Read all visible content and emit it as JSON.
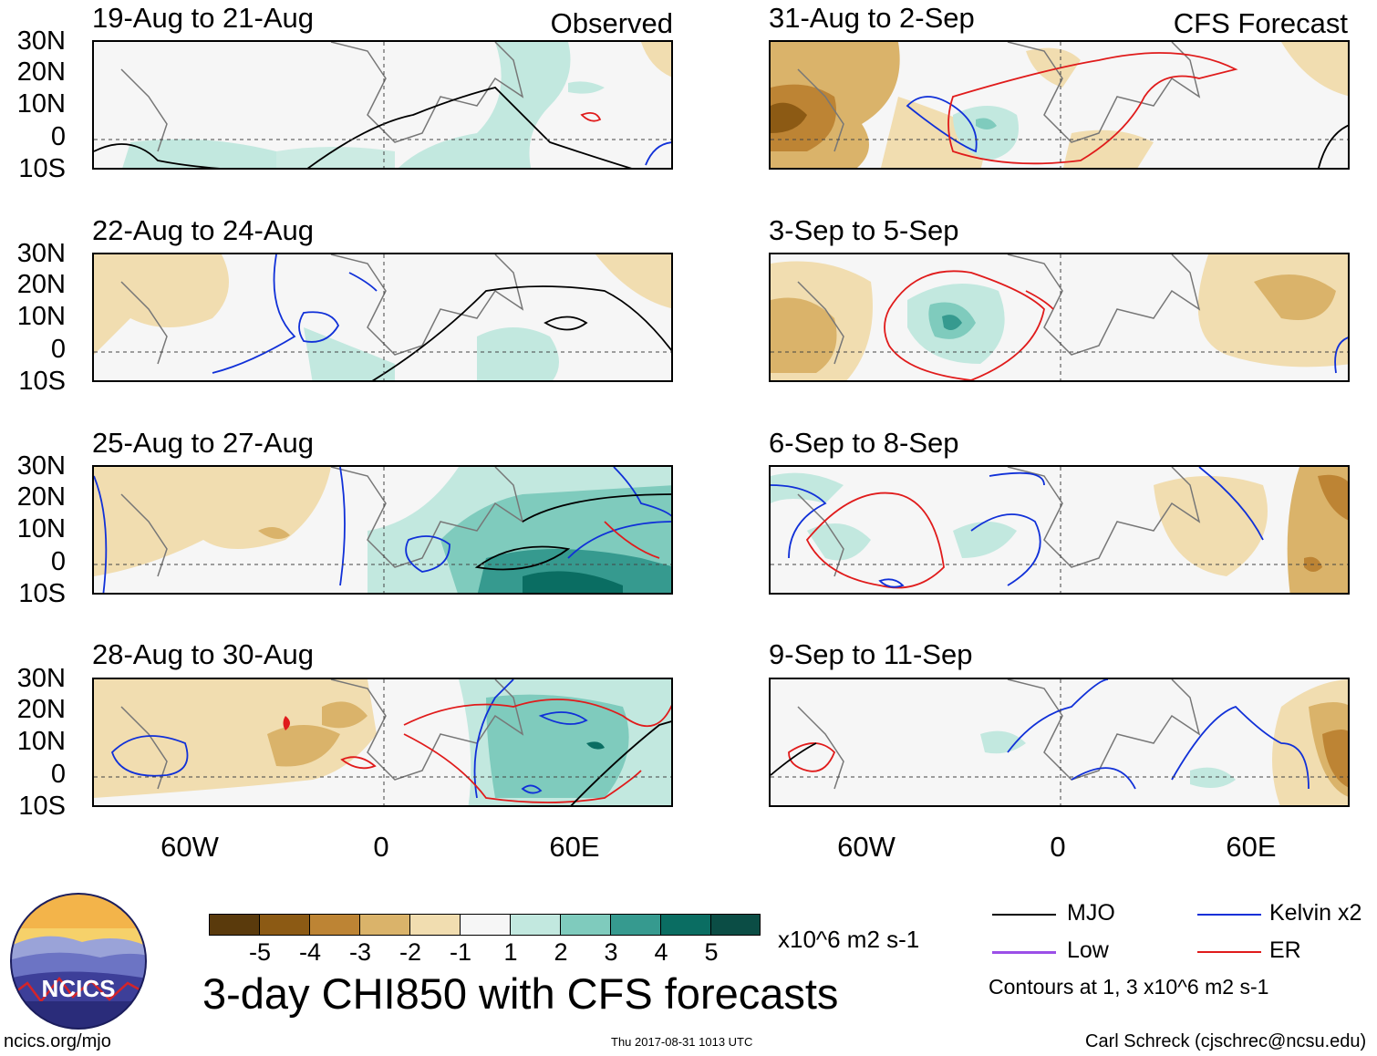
{
  "observed_label": "Observed",
  "forecast_label": "CFS Forecast",
  "lat_labels": [
    "30N",
    "20N",
    "10N",
    "0",
    "10S"
  ],
  "lon_labels": [
    "60W",
    "0",
    "60E"
  ],
  "panels": [
    {
      "title": "19-Aug to 21-Aug",
      "column": "observed"
    },
    {
      "title": "22-Aug to 24-Aug",
      "column": "observed"
    },
    {
      "title": "25-Aug to 27-Aug",
      "column": "observed"
    },
    {
      "title": "28-Aug to 30-Aug",
      "column": "observed"
    },
    {
      "title": "31-Aug to 2-Sep",
      "column": "forecast"
    },
    {
      "title": "3-Sep to 5-Sep",
      "column": "forecast"
    },
    {
      "title": "6-Sep to 8-Sep",
      "column": "forecast"
    },
    {
      "title": "9-Sep to 11-Sep",
      "column": "forecast"
    }
  ],
  "colorbar": {
    "colors": [
      "#5a3a0c",
      "#8c5a14",
      "#bd8434",
      "#dab36a",
      "#f1ddb0",
      "#f6f6f6",
      "#c2e8df",
      "#7fcbbd",
      "#369a8f",
      "#0a6d62",
      "#0b4d45"
    ],
    "ticks": [
      "-5",
      "-4",
      "-3",
      "-2",
      "-1",
      "1",
      "2",
      "3",
      "4",
      "5"
    ],
    "units": "x10^6 m2 s-1"
  },
  "main_title": "3-day CHI850 with CFS forecasts",
  "logo_text": "NCICS",
  "legend": {
    "items": [
      {
        "label": "MJO",
        "color": "#000000"
      },
      {
        "label": "Kelvin x2",
        "color": "#1030d8"
      },
      {
        "label": "Low",
        "color": "#9b4fe8"
      },
      {
        "label": "ER",
        "color": "#e01b1b"
      }
    ],
    "note": "Contours at 1, 3 x10^6 m2 s-1"
  },
  "footer": {
    "left": "ncics.org/mjo",
    "center": "Thu 2017-08-31 1013 UTC",
    "right": "Carl Schreck (cjschrec@ncsu.edu)"
  }
}
